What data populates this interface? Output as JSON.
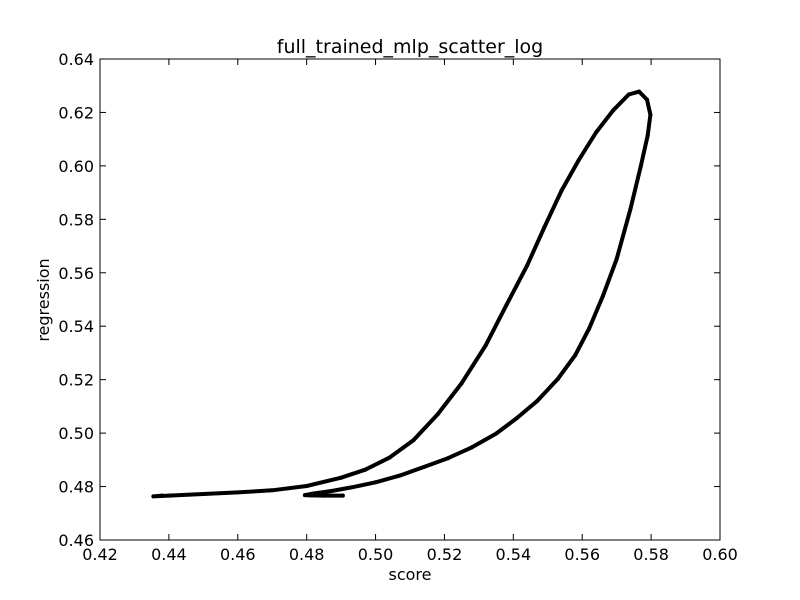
{
  "chart_data": {
    "type": "scatter",
    "title": "full_trained_mlp_scatter_log",
    "xlabel": "score",
    "ylabel": "regression",
    "xlim": [
      0.42,
      0.6
    ],
    "ylim": [
      0.46,
      0.64
    ],
    "xticks": [
      "0.42",
      "0.44",
      "0.46",
      "0.48",
      "0.50",
      "0.52",
      "0.54",
      "0.56",
      "0.58",
      "0.60"
    ],
    "yticks": [
      "0.46",
      "0.48",
      "0.50",
      "0.52",
      "0.54",
      "0.56",
      "0.58",
      "0.60",
      "0.62",
      "0.64"
    ],
    "grid": false,
    "marker_color": "#000000",
    "series": [
      {
        "points": [
          [
            0.4905,
            0.4766
          ],
          [
            0.485,
            0.4766
          ],
          [
            0.481,
            0.4767
          ],
          [
            0.4795,
            0.4768
          ],
          [
            0.482,
            0.4774
          ],
          [
            0.487,
            0.4783
          ],
          [
            0.493,
            0.4797
          ],
          [
            0.5,
            0.4816
          ],
          [
            0.507,
            0.4841
          ],
          [
            0.514,
            0.4873
          ],
          [
            0.521,
            0.4906
          ],
          [
            0.528,
            0.4947
          ],
          [
            0.535,
            0.4998
          ],
          [
            0.541,
            0.5056
          ],
          [
            0.547,
            0.5121
          ],
          [
            0.553,
            0.5204
          ],
          [
            0.558,
            0.5292
          ],
          [
            0.562,
            0.5391
          ],
          [
            0.566,
            0.5513
          ],
          [
            0.57,
            0.5652
          ],
          [
            0.574,
            0.5838
          ],
          [
            0.577,
            0.5999
          ],
          [
            0.579,
            0.6114
          ],
          [
            0.5798,
            0.6191
          ],
          [
            0.5788,
            0.6248
          ],
          [
            0.5765,
            0.6278
          ],
          [
            0.5735,
            0.6267
          ],
          [
            0.569,
            0.6208
          ],
          [
            0.564,
            0.6125
          ],
          [
            0.559,
            0.6022
          ],
          [
            0.554,
            0.5908
          ],
          [
            0.549,
            0.577
          ],
          [
            0.544,
            0.5627
          ],
          [
            0.538,
            0.5479
          ],
          [
            0.532,
            0.5329
          ],
          [
            0.525,
            0.5187
          ],
          [
            0.518,
            0.507
          ],
          [
            0.511,
            0.4973
          ],
          [
            0.504,
            0.4908
          ],
          [
            0.497,
            0.4863
          ],
          [
            0.49,
            0.4833
          ],
          [
            0.48,
            0.4802
          ],
          [
            0.47,
            0.4786
          ],
          [
            0.46,
            0.4778
          ],
          [
            0.45,
            0.4772
          ],
          [
            0.44,
            0.4766
          ],
          [
            0.4355,
            0.4763
          ],
          [
            0.438,
            0.4766
          ]
        ]
      }
    ]
  }
}
